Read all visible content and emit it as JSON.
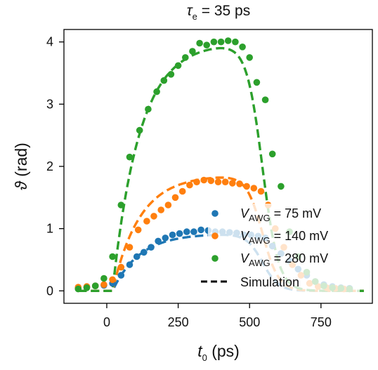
{
  "chart_data": {
    "type": "scatter",
    "title": {
      "symbol": "τ",
      "subscript": "e",
      "rest": " = 35 ps"
    },
    "xlabel": {
      "symbol": "t",
      "subscript": "0",
      "rest": " (ps)"
    },
    "ylabel": {
      "symbol": "ϑ",
      "rest": " (rad)"
    },
    "xlim": [
      -150,
      930
    ],
    "ylim": [
      -0.2,
      4.2
    ],
    "xticks": [
      0,
      250,
      500,
      750
    ],
    "xtick_labels": [
      "0",
      "250",
      "500",
      "750"
    ],
    "yticks": [
      0,
      1,
      2,
      3,
      4
    ],
    "ytick_labels": [
      "0",
      "1",
      "2",
      "3",
      "4"
    ],
    "legend_position": "lower-right",
    "series": [
      {
        "name": "75 mV",
        "legend_symbol": "V",
        "legend_subscript": "AWG",
        "color": "#1f77b4",
        "x": [
          -100,
          -70,
          -40,
          -10,
          20,
          50,
          80,
          105,
          130,
          155,
          180,
          205,
          230,
          255,
          280,
          305,
          330,
          355,
          380,
          405,
          430,
          455,
          480,
          505,
          530,
          555,
          580,
          610,
          640,
          670,
          700,
          730,
          760,
          790,
          820,
          850
        ],
        "y": [
          0.04,
          0.06,
          0.08,
          0.09,
          0.12,
          0.25,
          0.42,
          0.55,
          0.62,
          0.7,
          0.8,
          0.85,
          0.9,
          0.92,
          0.95,
          0.95,
          0.98,
          0.97,
          0.95,
          0.95,
          0.94,
          0.93,
          0.9,
          0.9,
          0.88,
          0.85,
          0.72,
          0.6,
          0.48,
          0.35,
          0.25,
          0.15,
          0.1,
          0.07,
          0.05,
          0.04
        ]
      },
      {
        "name": "140 mV",
        "legend_symbol": "V",
        "legend_subscript": "AWG",
        "color": "#ff7f0e",
        "x": [
          -100,
          -70,
          -40,
          -10,
          20,
          50,
          80,
          110,
          140,
          165,
          190,
          215,
          240,
          265,
          290,
          315,
          340,
          365,
          390,
          415,
          440,
          465,
          490,
          515,
          540,
          565,
          590,
          620,
          650,
          680,
          710,
          740,
          770,
          800,
          830
        ],
        "y": [
          0.06,
          0.07,
          0.08,
          0.1,
          0.18,
          0.38,
          0.7,
          0.98,
          1.12,
          1.2,
          1.3,
          1.38,
          1.5,
          1.6,
          1.7,
          1.75,
          1.78,
          1.77,
          1.75,
          1.75,
          1.73,
          1.72,
          1.68,
          1.65,
          1.6,
          1.38,
          1.0,
          0.7,
          0.42,
          0.25,
          0.12,
          0.07,
          0.05,
          0.04,
          0.03
        ]
      },
      {
        "name": "280 mV",
        "legend_symbol": "V",
        "legend_subscript": "AWG",
        "color": "#2ca02c",
        "x": [
          -100,
          -70,
          -40,
          -10,
          20,
          50,
          80,
          115,
          145,
          175,
          200,
          225,
          250,
          275,
          300,
          325,
          350,
          375,
          400,
          425,
          450,
          475,
          500,
          525,
          555,
          580,
          610,
          640,
          670,
          700,
          730,
          760,
          790,
          820,
          850
        ],
        "y": [
          0.03,
          0.05,
          0.08,
          0.2,
          0.55,
          1.38,
          2.15,
          2.58,
          2.92,
          3.2,
          3.38,
          3.48,
          3.62,
          3.75,
          3.85,
          3.98,
          3.95,
          4.0,
          4.0,
          4.02,
          4.0,
          3.92,
          3.75,
          3.35,
          3.07,
          2.2,
          1.68,
          0.95,
          0.55,
          0.3,
          0.15,
          0.08,
          0.05,
          0.04,
          0.03
        ]
      }
    ],
    "simulation": {
      "name": "Simulation",
      "style": "dashed",
      "curves": [
        {
          "color": "#1f77b4",
          "peak": 0.9
        },
        {
          "color": "#ff7f0e",
          "peak": 1.82
        },
        {
          "color": "#2ca02c",
          "peak": 3.9
        }
      ]
    }
  }
}
